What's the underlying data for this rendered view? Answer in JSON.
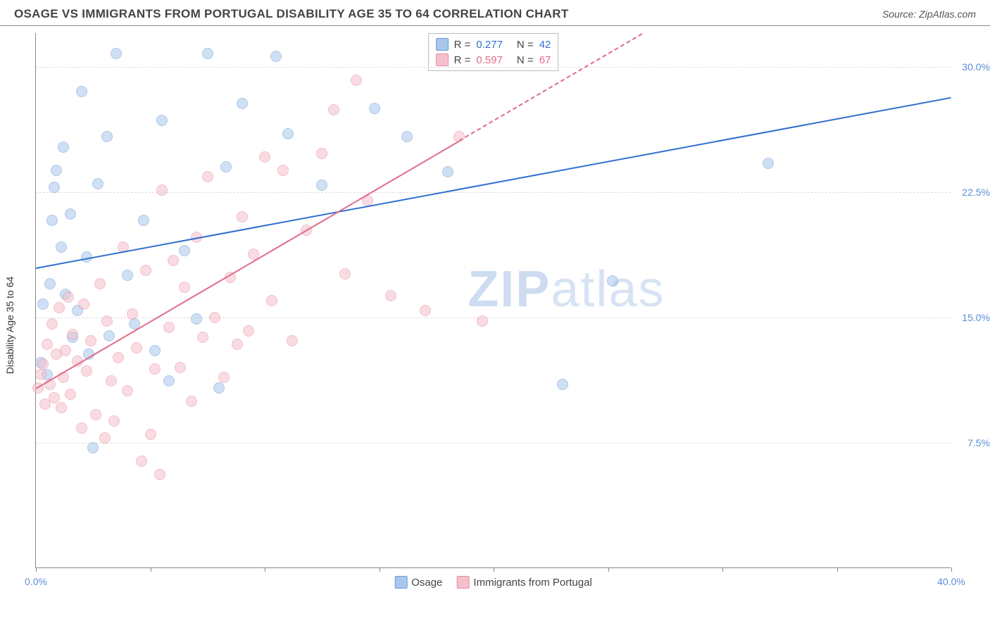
{
  "header": {
    "title": "OSAGE VS IMMIGRANTS FROM PORTUGAL DISABILITY AGE 35 TO 64 CORRELATION CHART",
    "source": "Source: ZipAtlas.com"
  },
  "watermark": {
    "zip": "ZIP",
    "atlas": "atlas"
  },
  "chart": {
    "type": "scatter",
    "ylabel": "Disability Age 35 to 64",
    "xlim": [
      0,
      40
    ],
    "ylim": [
      0,
      32
    ],
    "xtick_positions": [
      0,
      5,
      10,
      15,
      20,
      25,
      30,
      35,
      40
    ],
    "xtick_labels": {
      "0": "0.0%",
      "40": "40.0%"
    },
    "ytick_positions": [
      7.5,
      15.0,
      22.5,
      30.0
    ],
    "ytick_labels": [
      "7.5%",
      "15.0%",
      "22.5%",
      "30.0%"
    ],
    "background_color": "#ffffff",
    "grid_color": "#dddddd",
    "axis_color": "#888888",
    "label_color": "#5b8fd6",
    "point_radius": 8,
    "point_opacity": 0.55,
    "series": [
      {
        "name": "Osage",
        "color_fill": "#a9c7ec",
        "color_stroke": "#6b9bd6",
        "r": "0.277",
        "n": "42",
        "trend": {
          "slope": 0.255,
          "intercept": 18.0,
          "color": "#2f6fd0",
          "dash_after_x": 100
        },
        "points": [
          [
            0.2,
            12.3
          ],
          [
            0.3,
            15.8
          ],
          [
            0.5,
            11.6
          ],
          [
            0.6,
            17.0
          ],
          [
            0.7,
            20.8
          ],
          [
            0.8,
            22.8
          ],
          [
            0.9,
            23.8
          ],
          [
            1.1,
            19.2
          ],
          [
            1.2,
            25.2
          ],
          [
            1.3,
            16.4
          ],
          [
            1.5,
            21.2
          ],
          [
            1.6,
            13.8
          ],
          [
            1.8,
            15.4
          ],
          [
            2.0,
            28.5
          ],
          [
            2.2,
            18.6
          ],
          [
            2.3,
            12.8
          ],
          [
            2.5,
            7.2
          ],
          [
            2.7,
            23.0
          ],
          [
            3.1,
            25.8
          ],
          [
            3.2,
            13.9
          ],
          [
            3.5,
            30.8
          ],
          [
            4.0,
            17.5
          ],
          [
            4.3,
            14.6
          ],
          [
            4.7,
            20.8
          ],
          [
            5.2,
            13.0
          ],
          [
            5.5,
            26.8
          ],
          [
            5.8,
            11.2
          ],
          [
            6.5,
            19.0
          ],
          [
            7.0,
            14.9
          ],
          [
            7.5,
            30.8
          ],
          [
            8.0,
            10.8
          ],
          [
            8.3,
            24.0
          ],
          [
            9.0,
            27.8
          ],
          [
            10.5,
            30.6
          ],
          [
            11.0,
            26.0
          ],
          [
            12.5,
            22.9
          ],
          [
            14.8,
            27.5
          ],
          [
            16.2,
            25.8
          ],
          [
            18.0,
            23.7
          ],
          [
            23.0,
            11.0
          ],
          [
            25.2,
            17.2
          ],
          [
            32.0,
            24.2
          ]
        ]
      },
      {
        "name": "Immigrants from Portugal",
        "color_fill": "#f4c0cb",
        "color_stroke": "#e88ba3",
        "r": "0.597",
        "n": "67",
        "trend": {
          "slope": 0.8,
          "intercept": 10.8,
          "color": "#e26a8a",
          "dash_after_x": 18.5
        },
        "points": [
          [
            0.1,
            10.8
          ],
          [
            0.2,
            11.6
          ],
          [
            0.3,
            12.2
          ],
          [
            0.4,
            9.8
          ],
          [
            0.5,
            13.4
          ],
          [
            0.6,
            11.0
          ],
          [
            0.7,
            14.6
          ],
          [
            0.8,
            10.2
          ],
          [
            0.9,
            12.8
          ],
          [
            1.0,
            15.6
          ],
          [
            1.1,
            9.6
          ],
          [
            1.2,
            11.4
          ],
          [
            1.3,
            13.0
          ],
          [
            1.4,
            16.2
          ],
          [
            1.5,
            10.4
          ],
          [
            1.6,
            14.0
          ],
          [
            1.8,
            12.4
          ],
          [
            2.0,
            8.4
          ],
          [
            2.1,
            15.8
          ],
          [
            2.2,
            11.8
          ],
          [
            2.4,
            13.6
          ],
          [
            2.6,
            9.2
          ],
          [
            2.8,
            17.0
          ],
          [
            3.0,
            7.8
          ],
          [
            3.1,
            14.8
          ],
          [
            3.3,
            11.2
          ],
          [
            3.4,
            8.8
          ],
          [
            3.6,
            12.6
          ],
          [
            3.8,
            19.2
          ],
          [
            4.0,
            10.6
          ],
          [
            4.2,
            15.2
          ],
          [
            4.4,
            13.2
          ],
          [
            4.6,
            6.4
          ],
          [
            4.8,
            17.8
          ],
          [
            5.0,
            8.0
          ],
          [
            5.2,
            11.9
          ],
          [
            5.4,
            5.6
          ],
          [
            5.5,
            22.6
          ],
          [
            5.8,
            14.4
          ],
          [
            6.0,
            18.4
          ],
          [
            6.3,
            12.0
          ],
          [
            6.5,
            16.8
          ],
          [
            6.8,
            10.0
          ],
          [
            7.0,
            19.8
          ],
          [
            7.3,
            13.8
          ],
          [
            7.5,
            23.4
          ],
          [
            7.8,
            15.0
          ],
          [
            8.2,
            11.4
          ],
          [
            8.5,
            17.4
          ],
          [
            8.8,
            13.4
          ],
          [
            9.0,
            21.0
          ],
          [
            9.3,
            14.2
          ],
          [
            9.5,
            18.8
          ],
          [
            10.0,
            24.6
          ],
          [
            10.3,
            16.0
          ],
          [
            10.8,
            23.8
          ],
          [
            11.2,
            13.6
          ],
          [
            11.8,
            20.2
          ],
          [
            12.5,
            24.8
          ],
          [
            13.0,
            27.4
          ],
          [
            13.5,
            17.6
          ],
          [
            14.0,
            29.2
          ],
          [
            14.5,
            22.0
          ],
          [
            15.5,
            16.3
          ],
          [
            17.0,
            15.4
          ],
          [
            18.5,
            25.8
          ],
          [
            19.5,
            14.8
          ]
        ]
      }
    ],
    "legend_bottom": [
      {
        "label": "Osage",
        "fill": "#a9c7ec",
        "stroke": "#6b9bd6"
      },
      {
        "label": "Immigrants from Portugal",
        "fill": "#f4c0cb",
        "stroke": "#e88ba3"
      }
    ]
  }
}
